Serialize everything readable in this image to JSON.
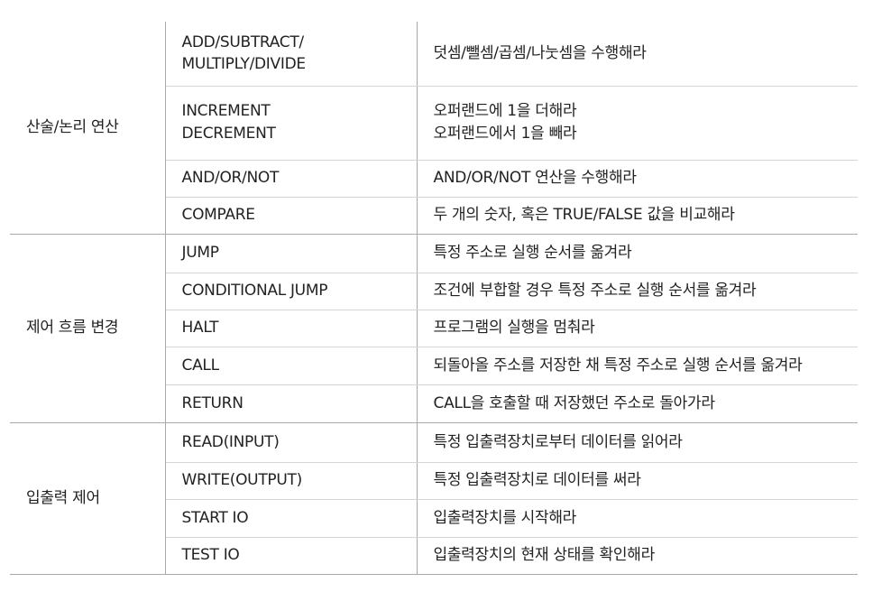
{
  "groups": [
    {
      "category": "산술/논리 연산",
      "rows": [
        {
          "instr": [
            "ADD/SUBTRACT/",
            "MULTIPLY/DIVIDE"
          ],
          "desc": [
            "덧셈/뺄셈/곱셈/나눗셈을 수행해라"
          ]
        },
        {
          "instr": [
            "INCREMENT",
            "DECREMENT"
          ],
          "desc": [
            "오퍼랜드에 1을 더해라",
            "오퍼랜드에서 1을 빼라"
          ]
        },
        {
          "instr": [
            "AND/OR/NOT"
          ],
          "desc": [
            "AND/OR/NOT 연산을 수행해라"
          ]
        },
        {
          "instr": [
            "COMPARE"
          ],
          "desc": [
            "두 개의 숫자, 혹은 TRUE/FALSE 값을 비교해라"
          ]
        }
      ]
    },
    {
      "category": "제어 흐름 변경",
      "rows": [
        {
          "instr": [
            "JUMP"
          ],
          "desc": [
            "특정 주소로 실행 순서를 옮겨라"
          ]
        },
        {
          "instr": [
            "CONDITIONAL JUMP"
          ],
          "desc": [
            "조건에 부합할 경우 특정 주소로 실행 순서를 옮겨라"
          ]
        },
        {
          "instr": [
            "HALT"
          ],
          "desc": [
            "프로그램의 실행을 멈춰라"
          ]
        },
        {
          "instr": [
            "CALL"
          ],
          "desc": [
            "되돌아올 주소를 저장한 채 특정 주소로 실행 순서를 옮겨라"
          ]
        },
        {
          "instr": [
            "RETURN"
          ],
          "desc": [
            "CALL을 호출할 때 저장했던 주소로 돌아가라"
          ]
        }
      ]
    },
    {
      "category": "입출력 제어",
      "rows": [
        {
          "instr": [
            "READ(INPUT)"
          ],
          "desc": [
            "특정 입출력장치로부터 데이터를 읽어라"
          ]
        },
        {
          "instr": [
            "WRITE(OUTPUT)"
          ],
          "desc": [
            "특정 입출력장치로 데이터를 써라"
          ]
        },
        {
          "instr": [
            "START IO"
          ],
          "desc": [
            "입출력장치를 시작해라"
          ]
        },
        {
          "instr": [
            "TEST IO"
          ],
          "desc": [
            "입출력장치의 현재 상태를 확인해라"
          ]
        }
      ]
    }
  ]
}
